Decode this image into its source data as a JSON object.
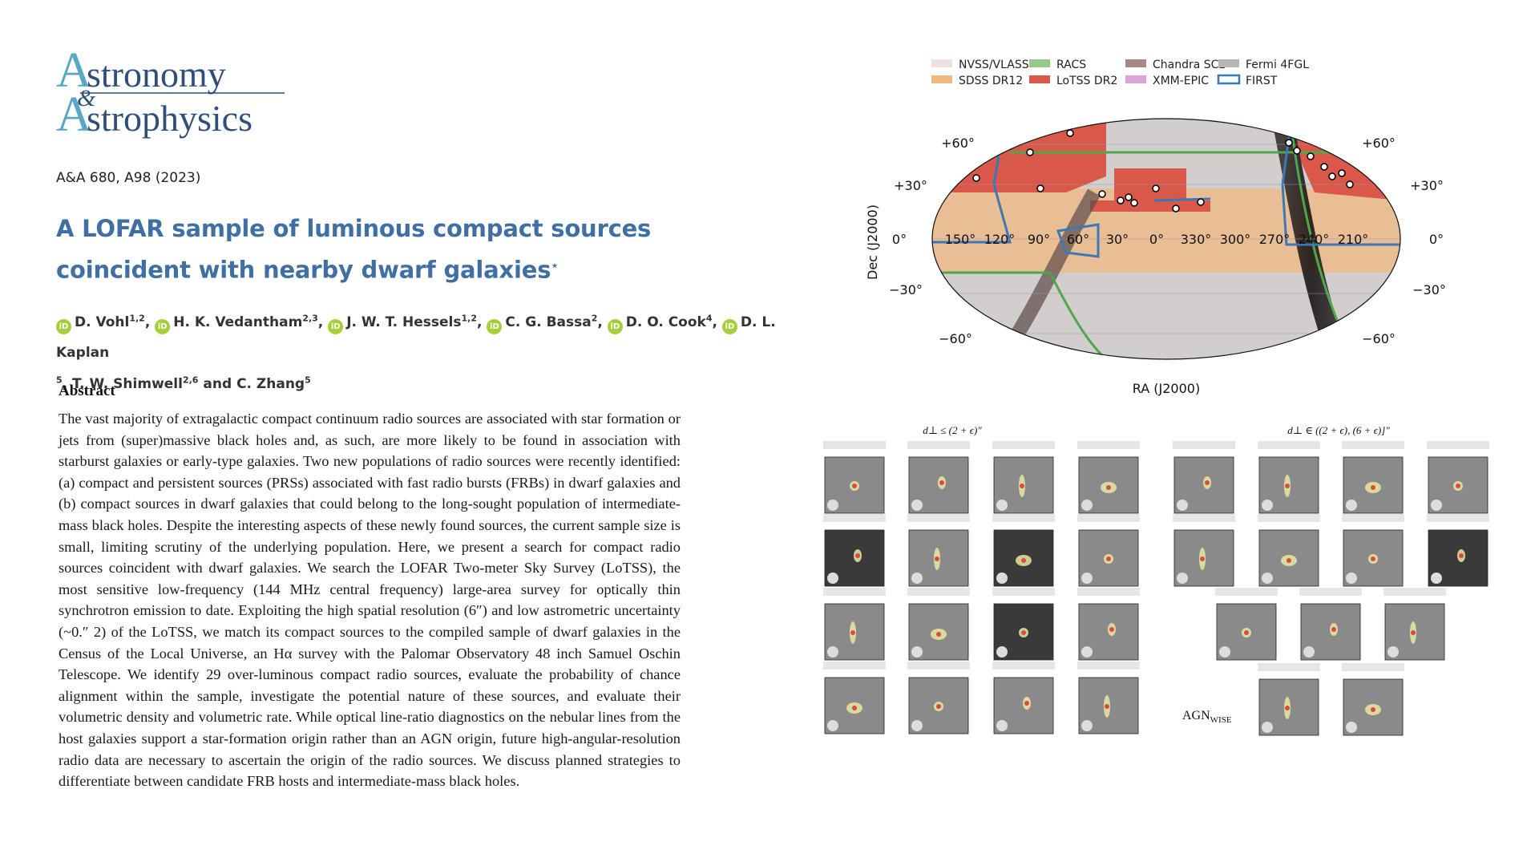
{
  "journal": {
    "line1": "stronomy",
    "amp": "&",
    "line2": "strophysics",
    "initial": "A"
  },
  "citation": "A&A 680, A98 (2023)",
  "title": {
    "text": "A LOFAR sample of luminous compact sources coincident with nearby dwarf galaxies",
    "mark": "⋆"
  },
  "authors": [
    {
      "name": "D. Vohl",
      "aff": "1,2",
      "sep": ","
    },
    {
      "name": "H. K. Vedantham",
      "aff": "2,3",
      "sep": ","
    },
    {
      "name": "J. W. T. Hessels",
      "aff": "1,2",
      "sep": ","
    },
    {
      "name": "C. G. Bassa",
      "aff": "2",
      "sep": ","
    },
    {
      "name": "D. O. Cook",
      "aff": "4",
      "sep": ","
    },
    {
      "name": "D. L. Kaplan",
      "aff": "",
      "sep": ""
    }
  ],
  "authors_line2": {
    "prefix": "5",
    "name1": "T. W. Shimwell",
    "aff1": "2,6",
    "and": " and ",
    "name2": "C. Zhang",
    "aff2": "5"
  },
  "orcid_glyph": "iD",
  "abstract": {
    "heading": "Abstract",
    "text": "The vast majority of extragalactic compact continuum radio sources are associated with star formation or jets from (super)massive black holes and, as such, are more likely to be found in association with starburst galaxies or early-type galaxies. Two new populations of radio sources were recently identified: (a) compact and persistent sources (PRSs) associated with fast radio bursts (FRBs) in dwarf galaxies and (b) compact sources in dwarf galaxies that could belong to the long-sought population of intermediate-mass black holes. Despite the interesting aspects of these newly found sources, the current sample size is small, limiting scrutiny of the underlying population. Here, we present a search for compact radio sources coincident with dwarf galaxies. We search the LOFAR Two-meter Sky Survey (LoTSS), the most sensitive low-frequency (144 MHz central frequency) large-area survey for optically thin synchrotron emission to date. Exploiting the high spatial resolution (6″) and low astrometric uncertainty (~0.″ 2) of the LoTSS, we match its compact sources to the compiled sample of dwarf galaxies in the Census of the Local Universe, an Hα survey with the Palomar Observatory 48 inch Samuel Oschin Telescope. We identify 29 over-luminous compact radio sources, evaluate the probability of chance alignment within the sample, investigate the potential nature of these sources, and evaluate their volumetric density and volumetric rate. While optical line-ratio diagnostics on the nebular lines from the host galaxies support a star-formation origin rather than an AGN origin, future high-angular-resolution radio data are necessary to ascertain the origin of the radio sources. We discuss planned strategies to differentiate between candidate FRB hosts and intermediate-mass black holes."
  },
  "sky_map": {
    "legend": [
      {
        "label": "NVSS/VLASS",
        "color": "#ebe1de",
        "style": "fill"
      },
      {
        "label": "RACS",
        "color": "#93c98a",
        "style": "fill"
      },
      {
        "label": "Chandra SC2",
        "color": "#a98880",
        "style": "fill"
      },
      {
        "label": "Fermi 4FGL",
        "color": "#b5b5b5",
        "style": "fill"
      },
      {
        "label": "SDSS DR12",
        "color": "#f2b882",
        "style": "fill"
      },
      {
        "label": "LoTSS DR2",
        "color": "#d9584a",
        "style": "fill"
      },
      {
        "label": "XMM-EPIC",
        "color": "#dca4d8",
        "style": "fill"
      },
      {
        "label": "FIRST",
        "color": "#3a78b8",
        "style": "outline"
      }
    ],
    "ylabel": "Dec (J2000)",
    "xlabel": "RA (J2000)",
    "dec_ticks": [
      "+60°",
      "+30°",
      "0°",
      "−30°",
      "−60°"
    ],
    "ra_ticks": [
      "150°",
      "120°",
      "90°",
      "60°",
      "30°",
      "0°",
      "330°",
      "300°",
      "270°",
      "240°",
      "210°"
    ]
  },
  "cutouts": {
    "left_header": "d⊥ ≤ (2 + ϵ)″",
    "right_header": "d⊥ ∈ ((2 + ϵ), (6 + ϵ)]″",
    "agn_label": "AGN",
    "agn_sub": "WISE"
  }
}
